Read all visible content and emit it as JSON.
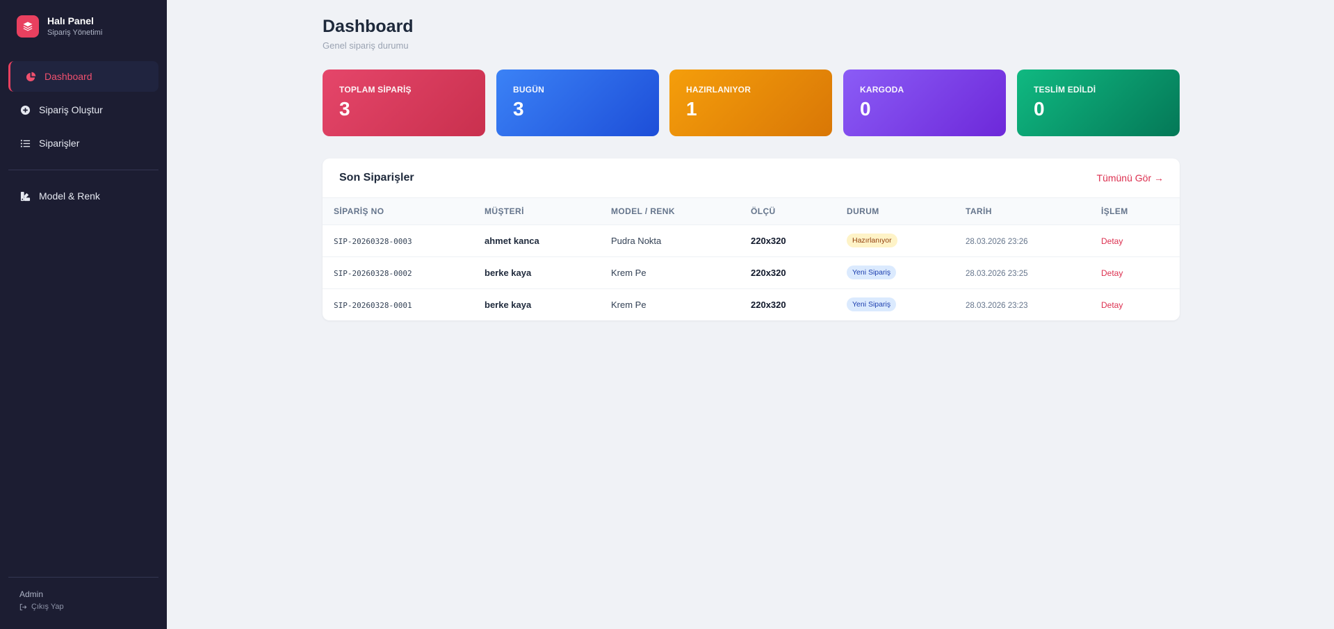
{
  "brand": {
    "title": "Halı Panel",
    "subtitle": "Sipariş Yönetimi",
    "logo_icon": "layers-icon",
    "color": "#e8405f"
  },
  "sidebar": {
    "items": [
      {
        "label": "Dashboard",
        "icon": "pie-chart-icon",
        "active": true
      },
      {
        "label": "Sipariş Oluştur",
        "icon": "plus-circle-icon",
        "active": false
      },
      {
        "label": "Siparişler",
        "icon": "list-icon",
        "active": false
      }
    ],
    "items2": [
      {
        "label": "Model & Renk",
        "icon": "palette-icon",
        "active": false
      }
    ],
    "user": "Admin",
    "logout": "Çıkış Yap"
  },
  "page": {
    "title": "Dashboard",
    "subtitle": "Genel sipariş durumu"
  },
  "stats": [
    {
      "label": "TOPLAM SİPARİŞ",
      "value": "3",
      "color_from": "#e5466a",
      "color_to": "#c9304e"
    },
    {
      "label": "BUGÜN",
      "value": "3",
      "color_from": "#3b82f6",
      "color_to": "#1d4ed8"
    },
    {
      "label": "HAZIRLANIYOR",
      "value": "1",
      "color_from": "#f59e0b",
      "color_to": "#d97706"
    },
    {
      "label": "KARGODA",
      "value": "0",
      "color_from": "#8b5cf6",
      "color_to": "#6d28d9"
    },
    {
      "label": "TESLİM EDİLDİ",
      "value": "0",
      "color_from": "#10b981",
      "color_to": "#047857"
    }
  ],
  "orders_panel": {
    "title": "Son Siparişler",
    "view_all": "Tümünü Gör →",
    "columns": [
      "SİPARİŞ NO",
      "MÜŞTERİ",
      "MODEL / RENK",
      "ÖLÇÜ",
      "DURUM",
      "TARİH",
      "İŞLEM"
    ],
    "rows": [
      {
        "no": "SIP-20260328-0003",
        "customer": "ahmet kanca",
        "model": "Pudra Nokta",
        "size": "220x320",
        "status": "Hazırlanıyor",
        "status_bg": "#fef3c7",
        "status_fg": "#92400e",
        "date": "28.03.2026 23:26",
        "action": "Detay"
      },
      {
        "no": "SIP-20260328-0002",
        "customer": "berke kaya",
        "model": "Krem Pe",
        "size": "220x320",
        "status": "Yeni Sipariş",
        "status_bg": "#dbeafe",
        "status_fg": "#1e40af",
        "date": "28.03.2026 23:25",
        "action": "Detay"
      },
      {
        "no": "SIP-20260328-0001",
        "customer": "berke kaya",
        "model": "Krem Pe",
        "size": "220x320",
        "status": "Yeni Sipariş",
        "status_bg": "#dbeafe",
        "status_fg": "#1e40af",
        "date": "28.03.2026 23:23",
        "action": "Detay"
      }
    ]
  }
}
